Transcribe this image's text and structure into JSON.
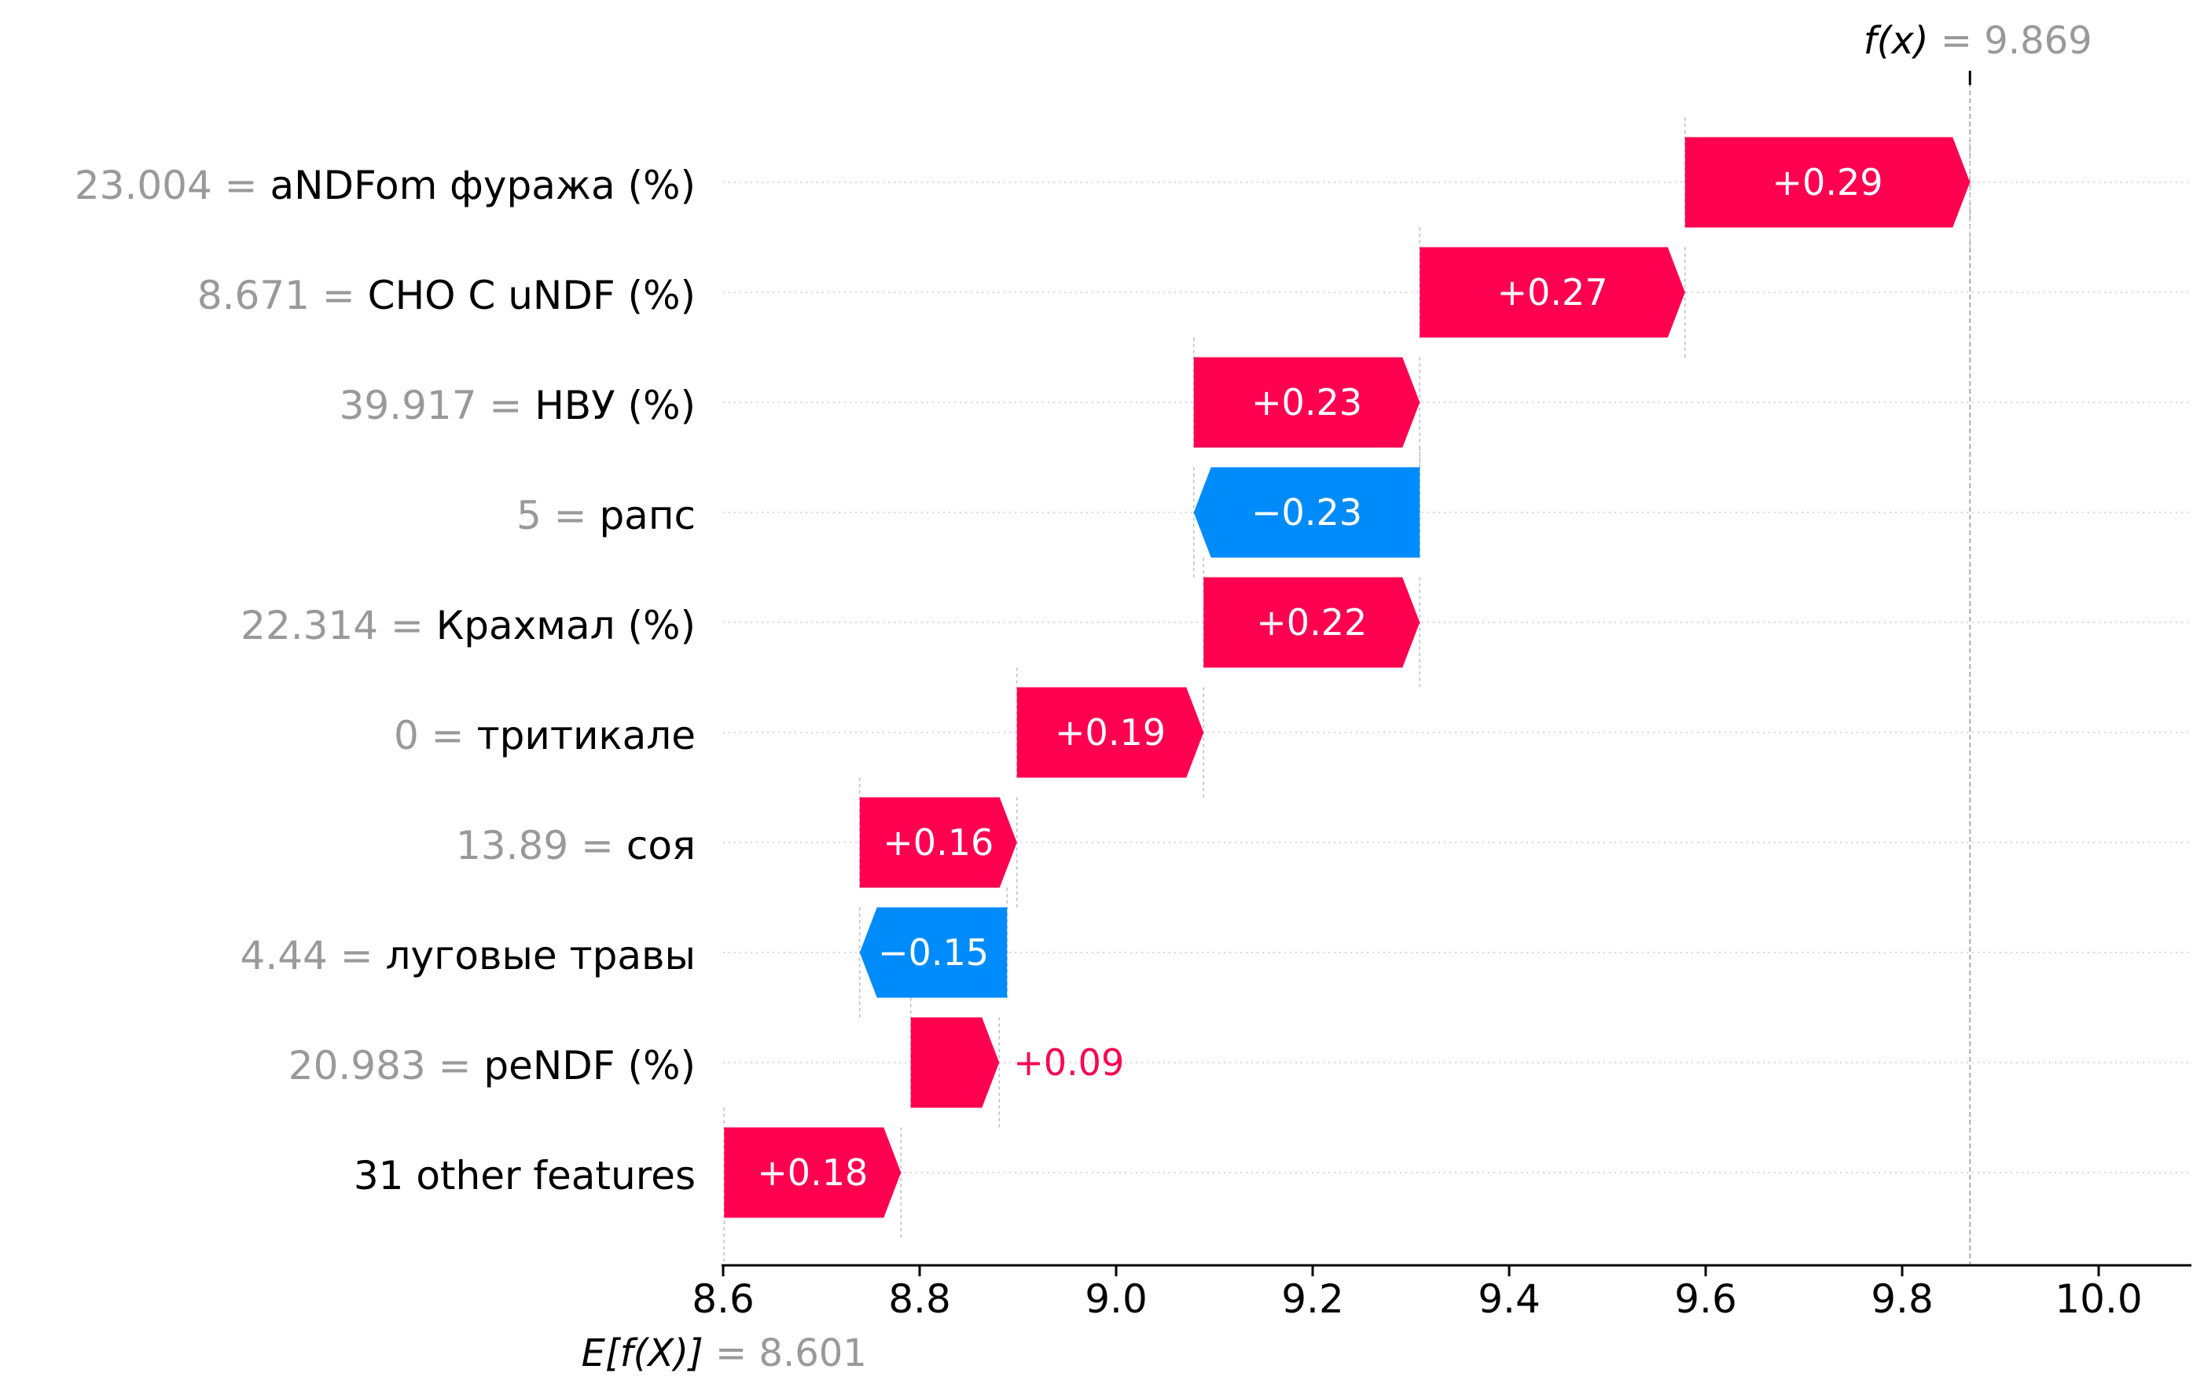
{
  "chart_data": {
    "type": "waterfall",
    "title": "",
    "xlabel": "",
    "ylabel": "",
    "xlim": [
      8.6,
      10.05
    ],
    "x_ticks": [
      "8.6",
      "8.8",
      "9.0",
      "9.2",
      "9.4",
      "9.6",
      "9.8",
      "10.0"
    ],
    "base_value": 8.601,
    "final_value": 9.869,
    "base_label": {
      "expr": "E[f(X)]",
      "value_text": "= 8.601"
    },
    "final_label": {
      "expr": "f(x)",
      "value_text": "= 9.869"
    },
    "colors": {
      "positive": "#ff0051",
      "negative": "#008bfb",
      "value_gray": "#999999"
    },
    "features": [
      {
        "value": "23.004",
        "name": "aNDFom фуража (%)",
        "start": 9.579,
        "end": 9.869,
        "contribution": 0.29,
        "label": "+0.29"
      },
      {
        "value": "8.671",
        "name": "CHO C uNDF (%)",
        "start": 9.309,
        "end": 9.579,
        "contribution": 0.27,
        "label": "+0.27"
      },
      {
        "value": "39.917",
        "name": "НВУ (%)",
        "start": 9.079,
        "end": 9.309,
        "contribution": 0.23,
        "label": "+0.23"
      },
      {
        "value": "5",
        "name": "рапс",
        "start": 9.309,
        "end": 9.079,
        "contribution": -0.23,
        "label": "−0.23"
      },
      {
        "value": "22.314",
        "name": "Крахмал (%)",
        "start": 9.089,
        "end": 9.309,
        "contribution": 0.22,
        "label": "+0.22"
      },
      {
        "value": "0",
        "name": "тритикале",
        "start": 8.899,
        "end": 9.089,
        "contribution": 0.19,
        "label": "+0.19"
      },
      {
        "value": "13.89",
        "name": "соя",
        "start": 8.739,
        "end": 8.899,
        "contribution": 0.16,
        "label": "+0.16"
      },
      {
        "value": "4.44",
        "name": "луговые травы",
        "start": 8.889,
        "end": 8.739,
        "contribution": -0.15,
        "label": "−0.15"
      },
      {
        "value": "20.983",
        "name": "peNDF (%)",
        "start": 8.791,
        "end": 8.881,
        "contribution": 0.09,
        "label": "+0.09"
      },
      {
        "value": "",
        "name": "31 other features",
        "start": 8.601,
        "end": 8.781,
        "contribution": 0.18,
        "label": "+0.18"
      }
    ]
  }
}
